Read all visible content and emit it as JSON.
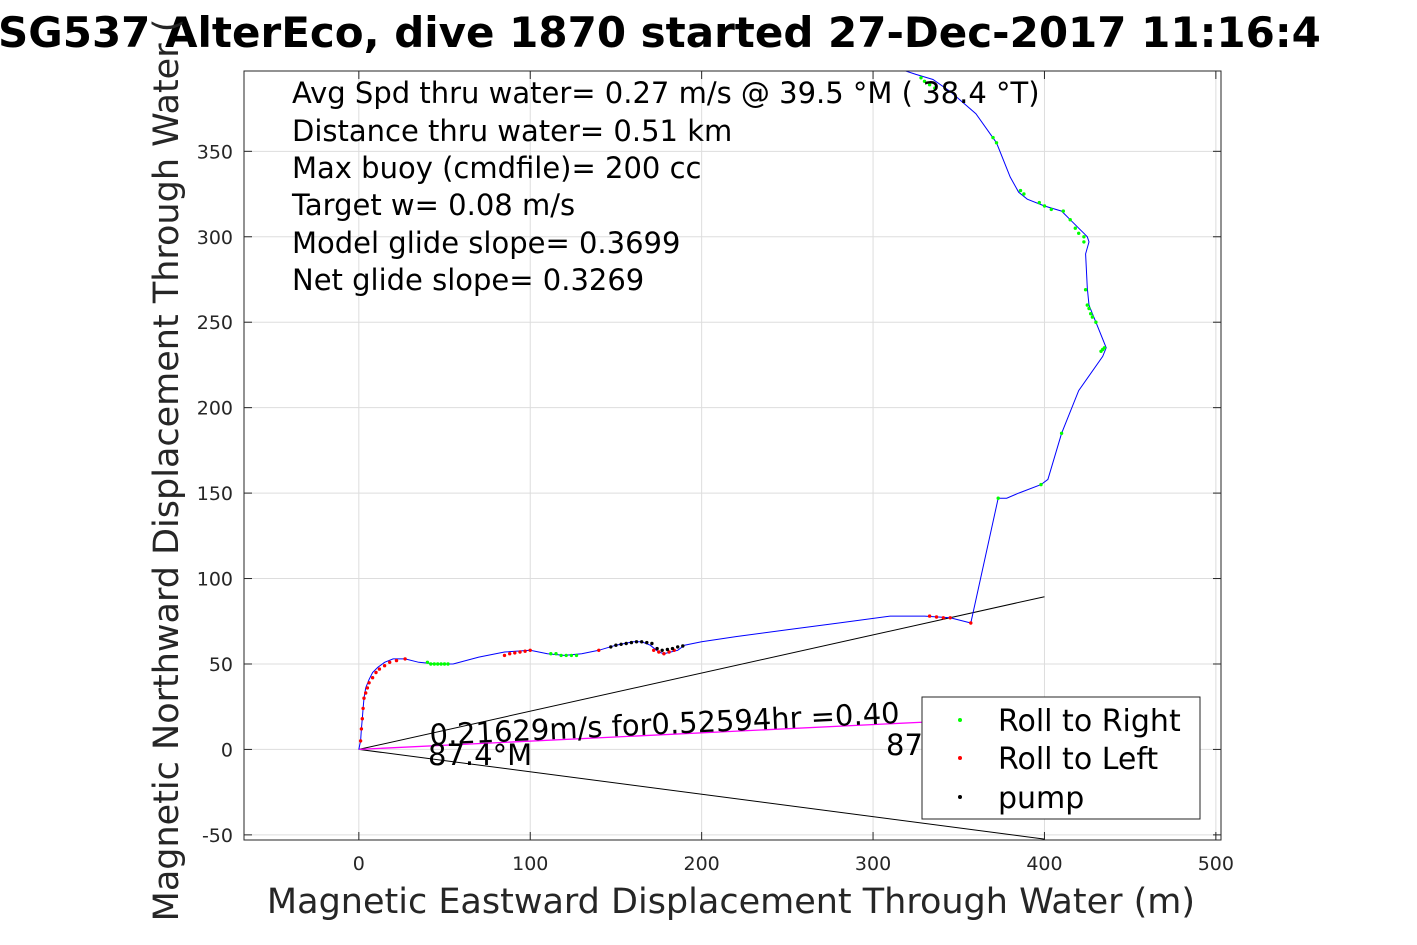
{
  "chart_data": {
    "type": "line",
    "title": "SG537 AlterEco, dive 1870 started 27-Dec-2017 11:16:4",
    "xlabel": "Magnetic Eastward Displacement Through Water (m)",
    "ylabel": "Magnetic Northward Displacement Through Water (",
    "xlim": [
      -67,
      503
    ],
    "ylim": [
      -53,
      397
    ],
    "xticks": [
      0,
      100,
      200,
      300,
      400,
      500
    ],
    "yticks": [
      -50,
      0,
      50,
      100,
      150,
      200,
      250,
      300,
      350
    ],
    "xtick_labels": [
      "0",
      "100",
      "200",
      "300",
      "400",
      "500"
    ],
    "ytick_labels": [
      "-50",
      "0",
      "50",
      "100",
      "150",
      "200",
      "250",
      "300",
      "350"
    ],
    "grid": true,
    "annotations": [
      "Avg Spd thru water=  0.27 m/s @  39.5 °M ( 38.4 °T)",
      "Distance thru water=  0.51 km",
      "Max buoy (cmdfile)= 200 cc",
      "Target w= 0.08 m/s",
      "Model glide slope= 0.3699",
      "Net glide slope= 0.3269"
    ],
    "colors": {
      "track": "#0000ff",
      "roll_right": "#00ff00",
      "roll_left": "#ff0000",
      "pump": "#000000",
      "current": "#ff00ff",
      "cone": "#000000",
      "axes": "#262626",
      "grid": "#dddddd"
    },
    "track": {
      "x": [
        0,
        1,
        1.5,
        2,
        2.5,
        3,
        4,
        6,
        8,
        11,
        15,
        20,
        27,
        35,
        45,
        55,
        70,
        85,
        100,
        110,
        120,
        130,
        140,
        150,
        160,
        165,
        170,
        175,
        178,
        182,
        186,
        190,
        200,
        220,
        250,
        280,
        310,
        330,
        345,
        357,
        373,
        378,
        385,
        398,
        402,
        410,
        420,
        434,
        436,
        430,
        428,
        426,
        425,
        424,
        426,
        425,
        423,
        420,
        415,
        410,
        400,
        390,
        385,
        380,
        372,
        360,
        345,
        335,
        325,
        310
      ],
      "y": [
        0,
        5,
        12,
        18,
        24,
        30,
        36,
        41,
        45,
        48,
        51,
        53,
        53,
        51,
        50,
        50,
        54,
        57,
        58,
        56,
        55,
        56,
        58,
        61,
        63,
        63,
        61,
        57,
        56,
        57,
        58,
        61,
        63,
        66,
        70,
        74,
        78,
        78,
        77,
        74,
        147,
        147,
        150,
        155,
        158,
        185,
        210,
        230,
        235,
        250,
        255,
        260,
        270,
        290,
        297,
        300,
        302,
        305,
        310,
        315,
        318,
        322,
        326,
        335,
        355,
        372,
        385,
        392,
        395,
        400
      ]
    },
    "roll_right_points": {
      "x": [
        40,
        42,
        44,
        46,
        48,
        50,
        52,
        112,
        115,
        118,
        121,
        124,
        127,
        373,
        398,
        410,
        423,
        426,
        427,
        428,
        430,
        433,
        434,
        435,
        424,
        425,
        423,
        420,
        418,
        415,
        411,
        404,
        400,
        397,
        388,
        386,
        372,
        370,
        336,
        333,
        330,
        328
      ],
      "y": [
        51,
        50,
        50,
        50,
        50,
        50,
        50,
        56,
        56,
        55,
        55,
        55,
        55,
        147,
        155,
        185,
        297,
        258,
        255,
        253,
        250,
        233,
        234,
        235,
        269,
        260,
        300,
        302,
        305,
        310,
        315,
        316,
        318,
        320,
        325,
        327,
        355,
        358,
        387,
        389,
        391,
        393
      ]
    },
    "roll_left_points": {
      "x": [
        1,
        1.5,
        2,
        2.5,
        3,
        4,
        5,
        6,
        8,
        10,
        12,
        15,
        18,
        22,
        27,
        85,
        88,
        91,
        94,
        97,
        100,
        140,
        172,
        175,
        178,
        181,
        184,
        333,
        337,
        341,
        345,
        357
      ],
      "y": [
        5,
        12,
        18,
        24,
        30,
        33,
        36,
        39,
        42,
        45,
        47,
        49,
        51,
        52,
        53,
        55,
        56,
        56.5,
        57,
        57.5,
        58,
        58,
        58,
        57,
        56,
        57,
        58,
        78,
        77.5,
        77,
        77,
        74
      ]
    },
    "pump_points": {
      "x": [
        147,
        150,
        153,
        156,
        159,
        162,
        165,
        168,
        171,
        174,
        177,
        180,
        183,
        186,
        189
      ],
      "y": [
        60,
        61,
        61.5,
        62,
        62.5,
        63,
        63,
        62.5,
        62,
        59,
        58,
        58.5,
        59,
        60,
        60.5
      ]
    },
    "cone_lines": [
      {
        "x": [
          0,
          400
        ],
        "y": [
          0,
          89.4
        ]
      },
      {
        "x": [
          0,
          400
        ],
        "y": [
          0,
          -52.5
        ]
      }
    ],
    "current_line": {
      "x": [
        0,
        330
      ],
      "y": [
        0,
        16
      ]
    },
    "current_label": {
      "line1": "0.21629m/s for0.52594hr =0.40",
      "line2": "87.4°M",
      "line3": "87"
    },
    "legend": {
      "position": "bottom-right",
      "entries": [
        {
          "label": "Roll to Right",
          "color": "#00ff00"
        },
        {
          "label": "Roll to Left",
          "color": "#ff0000"
        },
        {
          "label": "pump",
          "color": "#000000"
        }
      ]
    }
  }
}
